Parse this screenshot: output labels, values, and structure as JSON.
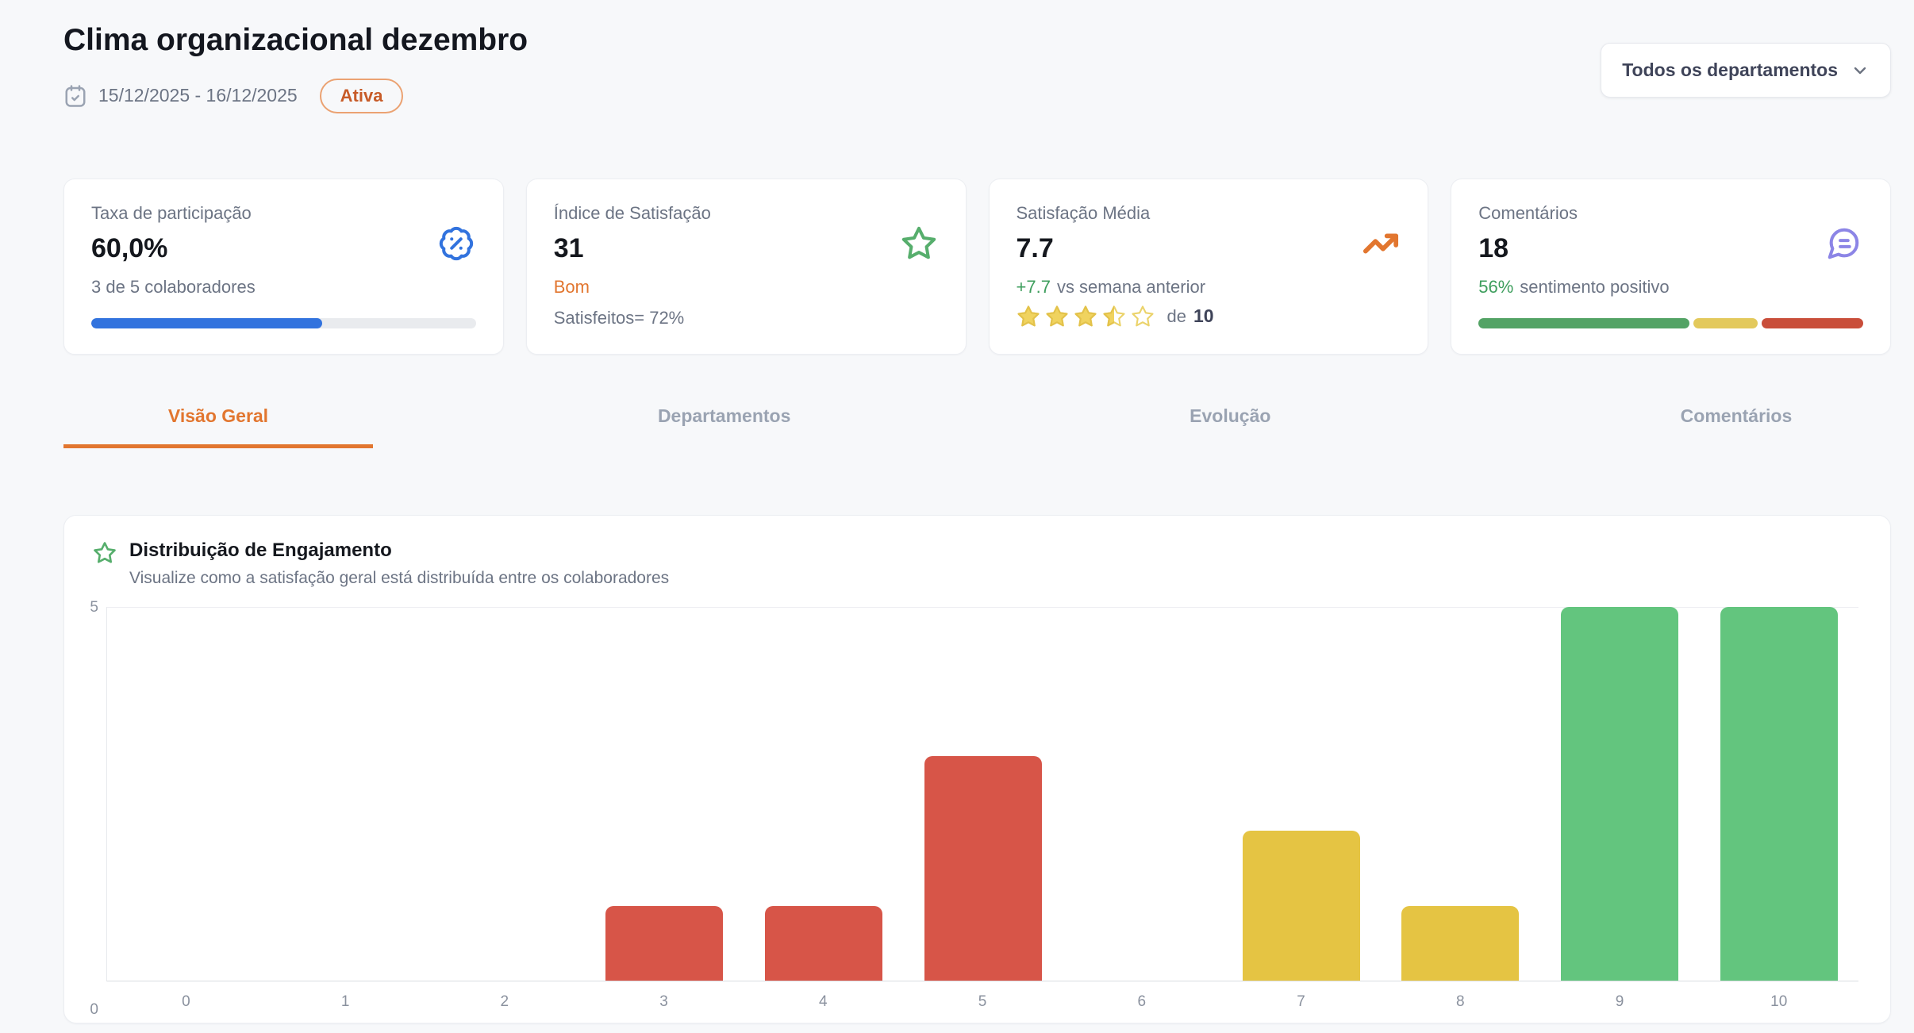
{
  "colors": {
    "accent_orange": "#E2762F",
    "blue": "#3273DE",
    "green_text": "#3E9E5D",
    "chart_red": "#D75548",
    "chart_yellow": "#E5C443",
    "chart_green": "#63C57E",
    "purple": "#8C85E6",
    "background": "#F7F8FA"
  },
  "header": {
    "title": "Clima organizacional dezembro",
    "date_range": "15/12/2025 - 16/12/2025",
    "date_icon": "calendar-check-icon",
    "status_badge": "Ativa",
    "department_filter_value": "Todos os departamentos",
    "department_filter_icon": "chevron-down-icon"
  },
  "stats": {
    "participation": {
      "label": "Taxa de participação",
      "value": "60,0%",
      "subtitle": "3 de 5 colaboradores",
      "progress_pct": 60,
      "icon": "badge-percent-icon"
    },
    "satisfaction_index": {
      "label": "Índice de Satisfação",
      "value": "31",
      "status": "Bom",
      "subtitle": "Satisfeitos= 72%",
      "icon": "star-icon"
    },
    "average_satisfaction": {
      "label": "Satisfação Média",
      "value": "7.7",
      "delta": "+7.7",
      "delta_suffix": "vs semana anterior",
      "stars_filled": 3.5,
      "stars_total": 5,
      "rating_prefix": "de",
      "rating_total": "10",
      "icon": "trending-up-icon"
    },
    "comments": {
      "label": "Comentários",
      "value": "18",
      "highlight": "56%",
      "subtitle_suffix": "sentimento positivo",
      "icon": "comment-icon",
      "sentiment_segments": [
        {
          "name": "positive",
          "pct": 56,
          "color": "#53A365"
        },
        {
          "name": "neutral",
          "pct": 17,
          "color": "#E3C95C"
        },
        {
          "name": "negative",
          "pct": 27,
          "color": "#C94E3A"
        }
      ]
    }
  },
  "tabs": [
    {
      "id": "visao-geral",
      "label": "Visão Geral",
      "active": true
    },
    {
      "id": "departamentos",
      "label": "Departamentos",
      "active": false
    },
    {
      "id": "evolucao",
      "label": "Evolução",
      "active": false
    },
    {
      "id": "comentarios",
      "label": "Comentários",
      "active": false
    }
  ],
  "chart_card": {
    "icon": "star-icon",
    "title": "Distribuição de Engajamento",
    "subtitle": "Visualize como a satisfação geral está distribuída entre os colaboradores"
  },
  "chart_data": {
    "type": "bar",
    "title": "Distribuição de Engajamento",
    "categories": [
      "0",
      "1",
      "2",
      "3",
      "4",
      "5",
      "6",
      "7",
      "8",
      "9",
      "10"
    ],
    "values": [
      0,
      0,
      0,
      1,
      1,
      3,
      0,
      2,
      1,
      5,
      5
    ],
    "bar_colors": [
      "#D75548",
      "#D75548",
      "#D75548",
      "#D75548",
      "#D75548",
      "#D75548",
      "#E5C443",
      "#E5C443",
      "#E5C443",
      "#63C57E",
      "#63C57E"
    ],
    "xlabel": "",
    "ylabel": "",
    "ylim": [
      0,
      5
    ],
    "yticks": [
      0,
      5
    ],
    "grid": "top-gridline-only",
    "legend": "none"
  }
}
